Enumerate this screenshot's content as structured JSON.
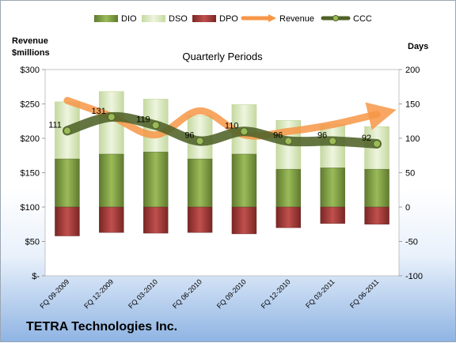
{
  "chart_data": {
    "type": "bar",
    "title": "Quarterly Periods",
    "company": "TETRA Technologies Inc.",
    "categories": [
      "FQ 09-2009",
      "FQ 12-2009",
      "FQ 03-2010",
      "FQ 06-2010",
      "FQ 09-2010",
      "FQ 12-2010",
      "FQ 03-2011",
      "FQ 06-2011"
    ],
    "left_axis": {
      "title_line1": "Revenue",
      "title_line2": "$millions",
      "range": [
        0,
        300
      ],
      "ticks": [
        0,
        50,
        100,
        150,
        200,
        250,
        300
      ],
      "tick_labels": [
        "$-",
        "$50",
        "$100",
        "$150",
        "$200",
        "$250",
        "$300"
      ]
    },
    "right_axis": {
      "title": "Days",
      "range": [
        -100,
        200
      ],
      "ticks": [
        -100,
        -50,
        0,
        50,
        100,
        150,
        200
      ],
      "tick_labels": [
        "-100",
        "-50",
        "0",
        "50",
        "100",
        "150",
        "200"
      ]
    },
    "series": [
      {
        "name": "DIO",
        "axis": "days",
        "color": "#77933c",
        "values": [
          70,
          77,
          80,
          70,
          77,
          55,
          57,
          55
        ]
      },
      {
        "name": "DSO",
        "axis": "days",
        "color": "#d7e4bd",
        "values": [
          83,
          91,
          77,
          63,
          72,
          71,
          63,
          62
        ]
      },
      {
        "name": "DPO",
        "axis": "days",
        "color": "#953735",
        "values": [
          -42,
          -37,
          -38,
          -37,
          -39,
          -30,
          -24,
          -25
        ]
      },
      {
        "name": "Revenue",
        "axis": "revenue",
        "color": "#f79646",
        "values": [
          255,
          232,
          205,
          240,
          205,
          210,
          220,
          235
        ]
      },
      {
        "name": "CCC",
        "axis": "days",
        "color": "#4f6228",
        "values": [
          111,
          131,
          119,
          96,
          110,
          96,
          96,
          92
        ]
      }
    ],
    "ccc_labels": [
      "111",
      "131",
      "119",
      "96",
      "110",
      "96",
      "96",
      "92"
    ],
    "legend_position": "top",
    "grid": false
  }
}
